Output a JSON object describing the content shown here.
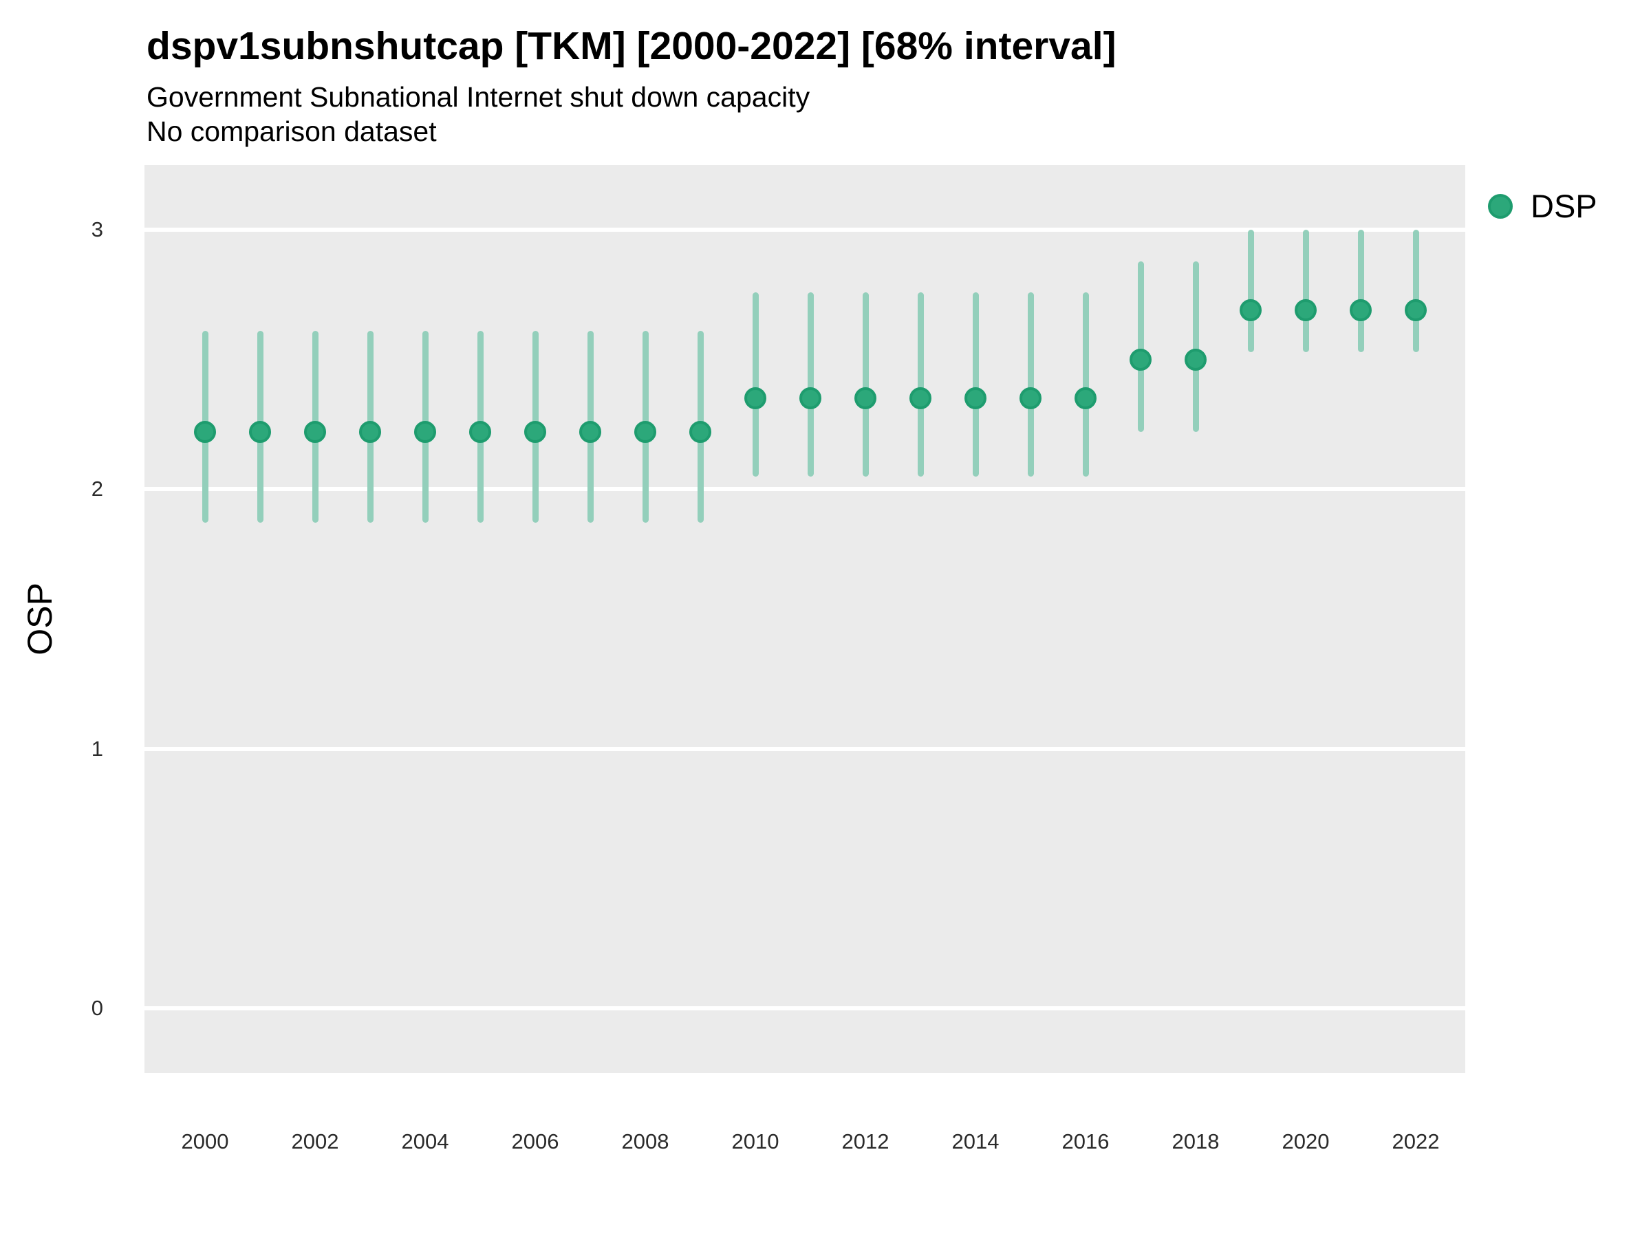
{
  "header": {
    "title": "dspv1subnshutcap [TKM] [2000-2022] [68% interval]",
    "subtitle": "Government Subnational Internet shut down capacity",
    "note": "No comparison dataset"
  },
  "legend": {
    "label": "DSP"
  },
  "chart_data": {
    "type": "scatter",
    "subtype": "pointrange",
    "title": "dspv1subnshutcap [TKM] [2000-2022] [68% interval]",
    "subtitle": "Government Subnational Internet shut down capacity",
    "note": "No comparison dataset",
    "xlabel": "",
    "ylabel": "OSP",
    "legend_entries": [
      "DSP"
    ],
    "legend_position": "right-top",
    "grid": "horizontal-major-only",
    "interval_level": "68%",
    "x": [
      2000,
      2001,
      2002,
      2003,
      2004,
      2005,
      2006,
      2007,
      2008,
      2009,
      2010,
      2011,
      2012,
      2013,
      2014,
      2015,
      2016,
      2017,
      2018,
      2019,
      2020,
      2021,
      2022
    ],
    "series": [
      {
        "name": "DSP",
        "estimate": [
          2.22,
          2.22,
          2.22,
          2.22,
          2.22,
          2.22,
          2.22,
          2.22,
          2.22,
          2.22,
          2.35,
          2.35,
          2.35,
          2.35,
          2.35,
          2.35,
          2.35,
          2.5,
          2.5,
          2.69,
          2.69,
          2.69,
          2.69
        ],
        "lower68": [
          1.87,
          1.87,
          1.87,
          1.87,
          1.87,
          1.87,
          1.87,
          1.87,
          1.87,
          1.87,
          2.05,
          2.05,
          2.05,
          2.05,
          2.05,
          2.05,
          2.05,
          2.22,
          2.22,
          2.53,
          2.53,
          2.53,
          2.53
        ],
        "upper68": [
          2.61,
          2.61,
          2.61,
          2.61,
          2.61,
          2.61,
          2.61,
          2.61,
          2.61,
          2.61,
          2.76,
          2.76,
          2.76,
          2.76,
          2.76,
          2.76,
          2.76,
          2.88,
          2.88,
          3.0,
          3.0,
          3.0,
          3.0
        ]
      }
    ],
    "x_ticks": [
      2000,
      2002,
      2004,
      2006,
      2008,
      2010,
      2012,
      2014,
      2016,
      2018,
      2020,
      2022
    ],
    "y_ticks": [
      0,
      1,
      2,
      3
    ],
    "x_range": [
      1998.9,
      2022.9
    ],
    "y_range": [
      -0.25,
      3.25
    ],
    "colors": {
      "point_fill": "#2CA87A",
      "point_edge": "#1E9C6E",
      "interval": "#93CFBB",
      "panel_bg": "#EBEBEB",
      "gridline": "#FFFFFF",
      "text": "#000000"
    }
  }
}
